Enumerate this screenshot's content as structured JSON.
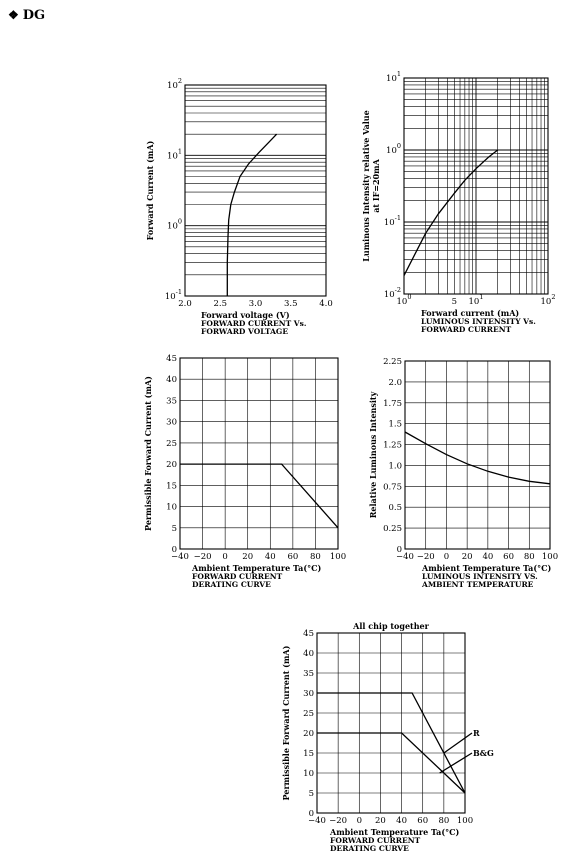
{
  "header": {
    "bullet": "❖",
    "title": "DG"
  },
  "chart_data": [
    {
      "type": "line",
      "x_scale": "linear",
      "y_scale": "log",
      "xlim": [
        2.0,
        4.0
      ],
      "ylim": [
        0.1,
        100
      ],
      "x_ticks": [
        "2.0",
        "2.5",
        "3.0",
        "3.5",
        "4.0"
      ],
      "y_ticks": [
        {
          "base": "10",
          "exp": "-1"
        },
        {
          "base": "10",
          "exp": "0"
        },
        {
          "base": "10",
          "exp": "1"
        },
        {
          "base": "10",
          "exp": "2"
        }
      ],
      "xlabel": "Forward  voltage  (V)",
      "ylabel": "Forward  Current  (mA)",
      "caption": [
        "FORWARD  CURRENT  Vs.",
        "FORWARD  VOLTAGE"
      ],
      "series": [
        {
          "x": [
            2.6,
            2.6,
            2.61,
            2.62,
            2.65,
            2.7,
            2.78,
            2.9,
            3.05,
            3.18,
            3.3
          ],
          "y": [
            0.1,
            0.3,
            0.7,
            1.2,
            2.0,
            3.0,
            5.0,
            7.5,
            11,
            15,
            20
          ]
        }
      ]
    },
    {
      "type": "line",
      "x_scale": "log",
      "y_scale": "log",
      "xlim": [
        1,
        100
      ],
      "ylim": [
        0.01,
        10
      ],
      "x_ticks": [
        {
          "base": "10",
          "exp": "0"
        },
        {
          "base": "5",
          "exp": ""
        },
        {
          "base": "10",
          "exp": "1"
        },
        {
          "base": "10",
          "exp": "2"
        }
      ],
      "y_ticks": [
        {
          "base": "10",
          "exp": "-2"
        },
        {
          "base": "10",
          "exp": "-1"
        },
        {
          "base": "10",
          "exp": "0"
        },
        {
          "base": "10",
          "exp": "1"
        }
      ],
      "xlabel": "Forward  current  (mA)",
      "ylabel": [
        "Luminous  Intensity  relative  Value",
        "at  IF=20mA"
      ],
      "caption": [
        "LUMINOUS  INTENSITY  Vs.",
        "FORWARD  CURRENT"
      ],
      "series": [
        {
          "x": [
            1,
            1.5,
            2,
            3,
            5,
            7,
            10,
            15,
            20
          ],
          "y": [
            0.018,
            0.04,
            0.07,
            0.13,
            0.25,
            0.38,
            0.55,
            0.8,
            1.0
          ]
        }
      ]
    },
    {
      "type": "line",
      "xlim": [
        -40,
        100
      ],
      "ylim": [
        0,
        45
      ],
      "x_ticks": [
        "−40",
        "−20",
        "0",
        "20",
        "40",
        "60",
        "80",
        "100"
      ],
      "y_ticks": [
        "0",
        "5",
        "10",
        "15",
        "20",
        "25",
        "30",
        "35",
        "40",
        "45"
      ],
      "xlabel": "Ambient  Temperature  Ta(°C)",
      "ylabel": "Permissible  Forward  Current  (mA)",
      "caption": [
        "FORWARD  CURRENT",
        "DERATING  CURVE"
      ],
      "series": [
        {
          "x": [
            -40,
            50,
            100
          ],
          "y": [
            20,
            20,
            5
          ]
        }
      ]
    },
    {
      "type": "line",
      "xlim": [
        -40,
        100
      ],
      "ylim": [
        0,
        2.25
      ],
      "x_ticks": [
        "−40",
        "−20",
        "0",
        "20",
        "40",
        "60",
        "80",
        "100"
      ],
      "y_ticks": [
        "0",
        "0.25",
        "0.5",
        "0.75",
        "1.0",
        "1.25",
        "1.5",
        "1.75",
        "2.0",
        "2.25"
      ],
      "xlabel": "Ambient  Temperature  Ta(°C)",
      "ylabel": "Relative  Luminous  Intensity",
      "caption": [
        "LUMINOUS  INTENSITY  VS.",
        "AMBIENT  TEMPERATURE"
      ],
      "series": [
        {
          "x": [
            -40,
            -20,
            0,
            20,
            40,
            60,
            80,
            100
          ],
          "y": [
            1.4,
            1.26,
            1.13,
            1.02,
            0.93,
            0.86,
            0.81,
            0.78
          ]
        }
      ]
    },
    {
      "type": "line",
      "title": "All  chip  together",
      "xlim": [
        -40,
        100
      ],
      "ylim": [
        0,
        45
      ],
      "x_ticks": [
        "−40",
        "−20",
        "0",
        "20",
        "40",
        "60",
        "80",
        "100"
      ],
      "y_ticks": [
        "0",
        "5",
        "10",
        "15",
        "20",
        "25",
        "30",
        "35",
        "40",
        "45"
      ],
      "xlabel": "Ambient  Temperature  Ta(°C)",
      "ylabel": "Permissible  Forward  Current  (mA)",
      "caption": [
        "FORWARD  CURRENT",
        "DERATING  CURVE"
      ],
      "series": [
        {
          "name": "R",
          "x": [
            -40,
            50,
            100
          ],
          "y": [
            30,
            30,
            5
          ]
        },
        {
          "name": "B&G",
          "x": [
            -40,
            40,
            100
          ],
          "y": [
            20,
            20,
            5
          ]
        }
      ],
      "annotations": [
        {
          "text": "R",
          "x": 100,
          "y": 20,
          "points_to": [
            80,
            15
          ]
        },
        {
          "text": "B&G",
          "x": 100,
          "y": 15,
          "points_to": [
            76,
            10
          ]
        }
      ]
    }
  ]
}
